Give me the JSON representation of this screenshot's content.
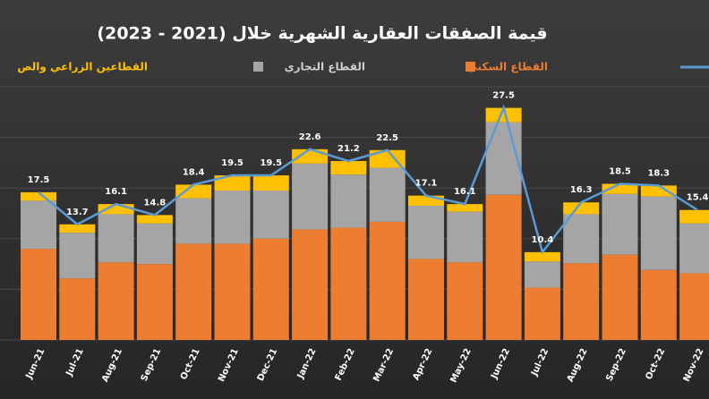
{
  "chart_data": {
    "type": "stacked_bar_line",
    "title": "قيمة الصفقات العقارية الشهرية خلال (2021 - 2023)",
    "categories": [
      "Jun-21",
      "Jul-21",
      "Aug-21",
      "Sep-21",
      "Oct-21",
      "Nov-21",
      "Dec-21",
      "Jan-22",
      "Feb-22",
      "Mar-22",
      "Apr-22",
      "May-22",
      "Jun-22",
      "Jul-22",
      "Aug-22",
      "Sep-22",
      "Oct-22",
      "Nov-22"
    ],
    "series": [
      {
        "name": "القطاع السكني",
        "color": "#ed7d31",
        "values": [
          10.8,
          7.3,
          9.2,
          9.0,
          11.4,
          11.4,
          12.0,
          13.1,
          13.3,
          14.0,
          9.6,
          9.2,
          17.2,
          6.2,
          9.1,
          10.1,
          8.3,
          7.9
        ]
      },
      {
        "name": "القطاع التجاري",
        "color": "#a5a5a5",
        "values": [
          5.7,
          5.4,
          5.7,
          4.8,
          5.4,
          6.3,
          5.7,
          7.8,
          6.3,
          6.4,
          6.3,
          6.0,
          8.6,
          3.1,
          5.8,
          7.2,
          8.7,
          5.9
        ]
      },
      {
        "name": "القطاعين الزراعي والص",
        "color": "#ffc000",
        "values": [
          1.0,
          1.0,
          1.2,
          1.0,
          1.6,
          1.8,
          1.8,
          1.7,
          1.6,
          2.1,
          1.2,
          0.9,
          1.7,
          1.1,
          1.4,
          1.2,
          1.3,
          1.6
        ]
      },
      {
        "type": "line",
        "color": "#5b9bd5",
        "values": [
          17.5,
          13.7,
          16.1,
          14.8,
          18.4,
          19.5,
          19.5,
          22.6,
          21.2,
          22.5,
          17.1,
          16.1,
          27.5,
          10.4,
          16.3,
          18.5,
          18.3,
          15.4
        ]
      }
    ],
    "ylim": [
      0,
      30
    ]
  }
}
